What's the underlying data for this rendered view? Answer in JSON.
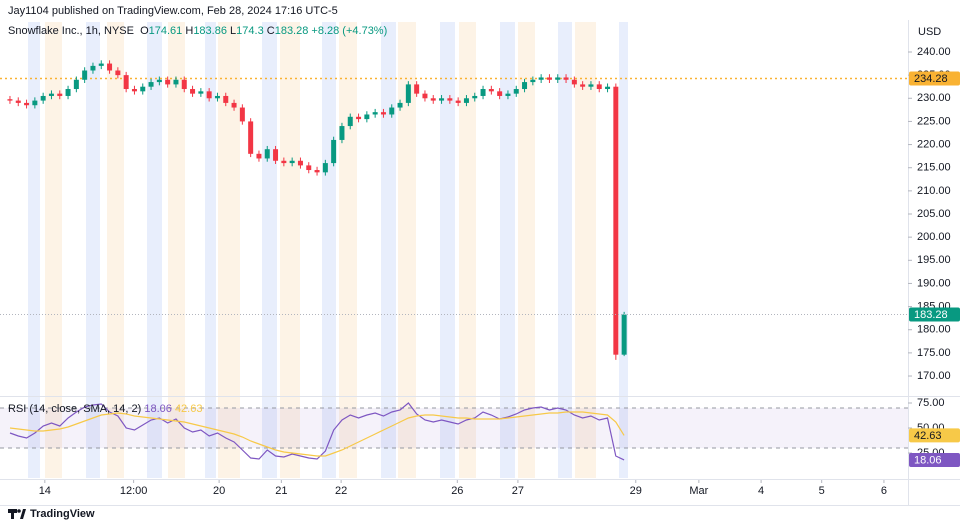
{
  "header": {
    "published": "Jay1104 published on TradingView.com, Feb 28, 2024 17:16 UTC-5"
  },
  "footer": {
    "brand": "TradingView"
  },
  "chart_data": [
    {
      "type": "candlestick",
      "title": "Snowflake Inc., 1h, NYSE",
      "legend_labels": {
        "open": "O",
        "high": "H",
        "low": "L",
        "close": "C"
      },
      "change_label": "+8.28 (+4.73%)",
      "currency": "USD",
      "up_color": "#089981",
      "down_color": "#f23645",
      "open": [
        229.8,
        229.5,
        229,
        228.5,
        229.5,
        230.5,
        231,
        230.5,
        232,
        234,
        236,
        237,
        237.5,
        236,
        235,
        232,
        231.5,
        232.5,
        233.5,
        234,
        233,
        234,
        232,
        231,
        231.5,
        230,
        230.5,
        229,
        228,
        225,
        218,
        217,
        219,
        216.5,
        216,
        216.5,
        215.5,
        214.5,
        214,
        216,
        221,
        224,
        226,
        225.5,
        226.5,
        227,
        226.5,
        228,
        229,
        233,
        231,
        230,
        229.5,
        230,
        229.5,
        229,
        230,
        230.5,
        232,
        231.5,
        230.5,
        231,
        232,
        233.5,
        234,
        234.5,
        234,
        234.5,
        234,
        233,
        232.5,
        233,
        232,
        232.5,
        174.61
      ],
      "high": [
        230.5,
        230.2,
        229.7,
        230.2,
        231.2,
        231.7,
        231.7,
        232.7,
        234.7,
        236.7,
        237.7,
        238.2,
        238.2,
        236.7,
        235.7,
        232.7,
        233.2,
        234.2,
        234.7,
        234.7,
        234.7,
        234.7,
        232.7,
        232.2,
        232.2,
        231.2,
        231.2,
        229.7,
        228.7,
        225.7,
        218.7,
        219.7,
        219.7,
        217.2,
        217.2,
        217.2,
        216.2,
        215.2,
        216.7,
        221.7,
        224.7,
        226.7,
        226.7,
        227.2,
        227.7,
        227.7,
        228.7,
        229.7,
        233.7,
        233.7,
        231.7,
        230.7,
        230.7,
        230.7,
        230.2,
        230.7,
        231.2,
        232.7,
        232.7,
        232.2,
        231.7,
        232.7,
        234.2,
        234.7,
        235.2,
        235.2,
        235.2,
        235.2,
        234.7,
        233.7,
        233.7,
        233.7,
        233.2,
        233.2,
        183.86
      ],
      "low": [
        228.8,
        228.3,
        227.8,
        227.8,
        228.8,
        229.8,
        229.8,
        229.8,
        231.3,
        233.3,
        235.3,
        236.3,
        235.3,
        234.3,
        231.3,
        230.8,
        230.8,
        231.8,
        232.8,
        232.3,
        232.3,
        231.3,
        230.3,
        230.3,
        229.3,
        229.3,
        228.3,
        227.3,
        224.3,
        217.3,
        216.3,
        216.3,
        215.8,
        215.3,
        215.3,
        214.8,
        213.8,
        213.3,
        213.3,
        215.3,
        220.3,
        223.3,
        224.8,
        224.8,
        225.8,
        225.8,
        225.8,
        227.3,
        228.3,
        230.3,
        229.3,
        228.8,
        228.8,
        228.8,
        228.3,
        228.3,
        229.3,
        229.8,
        230.8,
        229.8,
        229.8,
        230.3,
        231.3,
        232.8,
        233.3,
        233.3,
        233.3,
        233.3,
        232.3,
        231.8,
        231.8,
        231.3,
        231.3,
        173.5,
        174.3
      ],
      "close": [
        229.5,
        229,
        228.5,
        229.5,
        230.5,
        231,
        230.5,
        232,
        234,
        236,
        237,
        237.5,
        236,
        235,
        232,
        231.5,
        232.5,
        233.5,
        234,
        233,
        234,
        232,
        231,
        231.5,
        230,
        230.5,
        229,
        228,
        225,
        218,
        217,
        219,
        216.5,
        216,
        216.5,
        215.5,
        214.5,
        214,
        216,
        221,
        224,
        226,
        225.5,
        226.5,
        227,
        226.5,
        228,
        229,
        233,
        231,
        230,
        229.5,
        230,
        229.5,
        229,
        230,
        230.5,
        232,
        231.5,
        230.5,
        231,
        232,
        233.5,
        234,
        234.5,
        234,
        234.5,
        234,
        233,
        232.5,
        233,
        232,
        232.5,
        174.61,
        183.28
      ],
      "reference_line": {
        "value": 234.28,
        "color": "#f9b233"
      },
      "ylim": [
        165.9,
        244.75
      ],
      "yticks": [
        {
          "value": 170,
          "label": "170.00"
        },
        {
          "value": 175,
          "label": "175.00"
        },
        {
          "value": 180,
          "label": "180.00"
        },
        {
          "value": 185,
          "label": "185.00"
        },
        {
          "value": 190,
          "label": "190.00"
        },
        {
          "value": 195,
          "label": "195.00"
        },
        {
          "value": 200,
          "label": "200.00"
        },
        {
          "value": 205,
          "label": "205.00"
        },
        {
          "value": 210,
          "label": "210.00"
        },
        {
          "value": 215,
          "label": "215.00"
        },
        {
          "value": 220,
          "label": "220.00"
        },
        {
          "value": 225,
          "label": "225.00"
        },
        {
          "value": 230,
          "label": "230.00"
        },
        {
          "value": 235,
          "label": "235.00"
        },
        {
          "value": 240,
          "label": "240.00"
        }
      ],
      "xlim": [
        -1.2,
        108.2
      ],
      "xticks": [
        {
          "value": 4.2,
          "label": "14"
        },
        {
          "value": 14.9,
          "label": "12:00"
        },
        {
          "value": 25.2,
          "label": "20"
        },
        {
          "value": 32.7,
          "label": "21"
        },
        {
          "value": 39.9,
          "label": "22"
        },
        {
          "value": 53.9,
          "label": "26"
        },
        {
          "value": 61.2,
          "label": "27"
        },
        {
          "value": 75.4,
          "label": "29"
        },
        {
          "value": 83.0,
          "label": "Mar"
        },
        {
          "value": 90.5,
          "label": "4"
        },
        {
          "value": 97.8,
          "label": "5"
        },
        {
          "value": 105.3,
          "label": "6"
        }
      ],
      "grid": false
    },
    {
      "type": "line",
      "title": "RSI (14, close, SMA, 14, 2)",
      "series": [
        {
          "color": "#7e57c2",
          "values": [
            45,
            42,
            40,
            45,
            52,
            55,
            52,
            60,
            66,
            71,
            73,
            74,
            66,
            62,
            50,
            48,
            53,
            58,
            60,
            55,
            59,
            50,
            46,
            48,
            42,
            45,
            40,
            36,
            28,
            20,
            19,
            28,
            22,
            21,
            24,
            22,
            20,
            19,
            27,
            48,
            58,
            63,
            60,
            63,
            65,
            62,
            66,
            68,
            75,
            64,
            58,
            56,
            58,
            56,
            54,
            58,
            60,
            66,
            63,
            59,
            61,
            64,
            68,
            70,
            71,
            68,
            70,
            68,
            63,
            60,
            62,
            58,
            60,
            22,
            18.06
          ]
        },
        {
          "color": "#f7c948",
          "values": [
            50,
            49,
            48,
            47,
            47,
            48,
            49,
            51,
            54,
            57,
            60,
            63,
            64,
            65,
            64,
            62,
            61,
            60,
            59,
            58,
            57,
            56,
            54,
            52,
            50,
            48,
            46,
            44,
            41,
            37,
            34,
            31,
            28,
            26,
            25,
            24,
            23,
            22,
            22,
            25,
            28,
            32,
            36,
            40,
            44,
            48,
            52,
            56,
            60,
            62,
            63,
            63,
            62,
            61,
            60,
            60,
            59,
            59,
            59,
            59,
            60,
            61,
            62,
            63,
            64,
            65,
            65,
            66,
            66,
            66,
            65,
            64,
            63,
            56,
            42.63
          ]
        }
      ],
      "band": [
        30,
        70
      ],
      "band_color": "#7e57c2",
      "ylim": [
        0,
        80
      ],
      "yticks": [
        {
          "value": 25,
          "label": "25.00"
        },
        {
          "value": 50,
          "label": "50.00"
        },
        {
          "value": 75,
          "label": "75.00"
        }
      ],
      "grid": false
    }
  ]
}
